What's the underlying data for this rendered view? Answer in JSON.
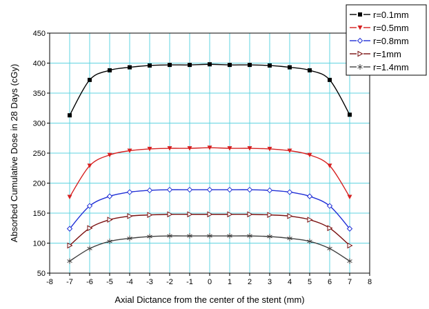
{
  "chart_data": {
    "type": "line",
    "title": "",
    "xlabel": "Axial Dictance from the center of the stent (mm)",
    "ylabel": "Absorbed Cumulative Dose in 28 Days  (cGy)",
    "xlim": [
      -8,
      8
    ],
    "ylim": [
      50,
      450
    ],
    "xticks": [
      -8,
      -7,
      -6,
      -5,
      -4,
      -3,
      -2,
      -1,
      0,
      1,
      2,
      3,
      4,
      5,
      6,
      7,
      8
    ],
    "yticks": [
      50,
      100,
      150,
      200,
      250,
      300,
      350,
      400,
      450
    ],
    "grid": true,
    "grid_color": "#5fd3e0",
    "legend_position": "top-right",
    "x": [
      -7,
      -6,
      -5,
      -4,
      -3,
      -2,
      -1,
      0,
      1,
      2,
      3,
      4,
      5,
      6,
      7
    ],
    "series": [
      {
        "name": "r=0.1mm",
        "color": "#000000",
        "marker": "filled-square",
        "values": [
          313,
          372,
          388,
          393,
          396,
          397,
          397,
          398,
          397,
          397,
          396,
          393,
          388,
          372,
          314
        ]
      },
      {
        "name": "r=0.5mm",
        "color": "#d62020",
        "marker": "filled-triangle-down",
        "values": [
          177,
          229,
          247,
          254,
          257,
          258,
          258,
          259,
          258,
          258,
          257,
          254,
          247,
          229,
          177
        ]
      },
      {
        "name": "r=0.8mm",
        "color": "#1f2fd6",
        "marker": "open-diamond",
        "values": [
          124,
          162,
          178,
          185,
          188,
          189,
          189,
          189,
          189,
          189,
          188,
          185,
          178,
          162,
          124
        ]
      },
      {
        "name": "r=1mm",
        "color": "#7a1010",
        "marker": "open-triangle-right",
        "values": [
          96,
          125,
          139,
          145,
          147,
          148,
          148,
          148,
          148,
          148,
          147,
          145,
          139,
          125,
          96
        ]
      },
      {
        "name": "r=1.4mm",
        "color": "#404040",
        "marker": "asterisk",
        "values": [
          70,
          91,
          103,
          108,
          111,
          112,
          112,
          112,
          112,
          112,
          111,
          108,
          103,
          91,
          70
        ]
      }
    ]
  }
}
